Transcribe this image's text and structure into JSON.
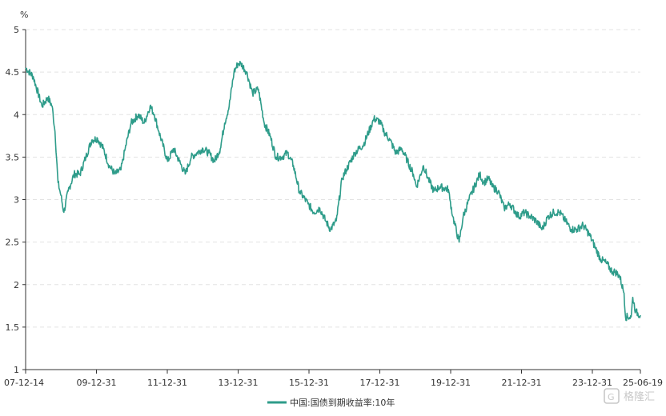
{
  "chart_data": {
    "type": "line",
    "title": "",
    "xlabel": "",
    "ylabel": "%",
    "ylim": [
      1,
      5
    ],
    "y_ticks": [
      "1",
      "1.5",
      "2",
      "2.5",
      "3",
      "3.5",
      "4",
      "4.5",
      "5"
    ],
    "x_tick_labels": [
      "07-12-14",
      "09-12-31",
      "11-12-31",
      "13-12-31",
      "15-12-31",
      "17-12-31",
      "19-12-31",
      "21-12-31",
      "23-12-31",
      "25-06-19"
    ],
    "grid": "horizontal-dashed",
    "legend_position": "bottom-center",
    "series": [
      {
        "name": "中国:国债到期收益率:10年",
        "color": "#2e9c8a",
        "x": [
          "2007-12-14",
          "2008-03-01",
          "2008-06-01",
          "2008-08-01",
          "2008-09-15",
          "2008-10-15",
          "2008-11-15",
          "2008-12-15",
          "2009-01-15",
          "2009-03-01",
          "2009-05-01",
          "2009-07-01",
          "2009-09-01",
          "2009-11-01",
          "2009-12-31",
          "2010-03-01",
          "2010-05-01",
          "2010-07-01",
          "2010-09-01",
          "2010-10-15",
          "2010-12-15",
          "2011-03-01",
          "2011-05-01",
          "2011-07-01",
          "2011-08-15",
          "2011-10-01",
          "2011-12-31",
          "2012-03-01",
          "2012-05-01",
          "2012-07-01",
          "2012-09-01",
          "2012-11-01",
          "2013-01-01",
          "2013-03-01",
          "2013-05-01",
          "2013-07-01",
          "2013-08-15",
          "2013-10-01",
          "2013-11-20",
          "2013-12-31",
          "2014-02-01",
          "2014-04-01",
          "2014-06-01",
          "2014-08-01",
          "2014-10-01",
          "2014-12-01",
          "2015-02-01",
          "2015-04-01",
          "2015-06-01",
          "2015-08-01",
          "2015-10-01",
          "2015-12-31",
          "2016-03-01",
          "2016-05-01",
          "2016-07-01",
          "2016-08-20",
          "2016-10-20",
          "2016-12-20",
          "2017-02-01",
          "2017-05-01",
          "2017-08-01",
          "2017-11-15",
          "2018-01-15",
          "2018-03-01",
          "2018-05-01",
          "2018-07-01",
          "2018-09-01",
          "2018-11-01",
          "2018-12-31",
          "2019-02-01",
          "2019-04-15",
          "2019-06-01",
          "2019-08-01",
          "2019-10-01",
          "2019-12-31",
          "2020-01-15",
          "2020-02-15",
          "2020-04-20",
          "2020-06-01",
          "2020-08-01",
          "2020-11-20",
          "2021-01-01",
          "2021-02-20",
          "2021-04-01",
          "2021-06-01",
          "2021-08-01",
          "2021-10-01",
          "2021-12-31",
          "2022-03-01",
          "2022-05-01",
          "2022-07-01",
          "2022-09-01",
          "2022-11-01",
          "2022-12-31",
          "2023-03-01",
          "2023-05-01",
          "2023-07-01",
          "2023-09-01",
          "2023-11-01",
          "2023-12-31",
          "2024-03-01",
          "2024-05-01",
          "2024-07-01",
          "2024-09-01",
          "2024-10-01",
          "2024-11-15",
          "2024-12-31",
          "2025-01-15",
          "2025-03-15",
          "2025-04-01",
          "2025-05-01",
          "2025-06-19"
        ],
        "values": [
          4.55,
          4.45,
          4.1,
          4.2,
          4.1,
          3.8,
          3.2,
          3.05,
          2.85,
          3.1,
          3.3,
          3.3,
          3.5,
          3.7,
          3.72,
          3.6,
          3.4,
          3.3,
          3.35,
          3.6,
          3.9,
          4.0,
          3.9,
          4.1,
          4.0,
          3.8,
          3.45,
          3.6,
          3.45,
          3.3,
          3.5,
          3.55,
          3.6,
          3.55,
          3.45,
          3.6,
          3.9,
          4.1,
          4.5,
          4.6,
          4.6,
          4.5,
          4.25,
          4.3,
          3.9,
          3.75,
          3.5,
          3.5,
          3.55,
          3.4,
          3.1,
          2.95,
          2.85,
          2.9,
          2.75,
          2.65,
          2.75,
          3.25,
          3.35,
          3.55,
          3.65,
          3.95,
          3.92,
          3.8,
          3.7,
          3.55,
          3.6,
          3.45,
          3.3,
          3.15,
          3.4,
          3.25,
          3.1,
          3.15,
          3.12,
          3.0,
          2.8,
          2.5,
          2.8,
          3.0,
          3.3,
          3.2,
          3.25,
          3.15,
          3.1,
          2.9,
          2.95,
          2.8,
          2.85,
          2.8,
          2.75,
          2.65,
          2.8,
          2.85,
          2.85,
          2.75,
          2.65,
          2.65,
          2.7,
          2.6,
          2.45,
          2.3,
          2.25,
          2.15,
          2.15,
          2.1,
          1.9,
          1.62,
          1.62,
          1.85,
          1.68,
          1.64
        ]
      }
    ]
  },
  "watermark": {
    "text": "格隆汇",
    "color": "#c8c8c8"
  }
}
